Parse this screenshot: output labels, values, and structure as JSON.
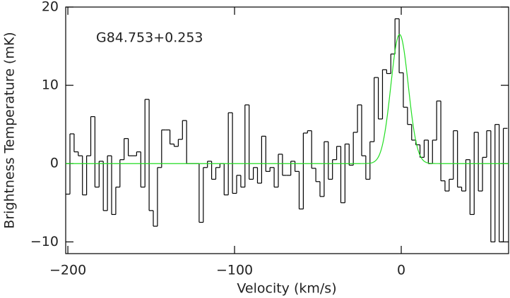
{
  "chart_data": {
    "type": "step",
    "annotation": "G84.753+0.253",
    "x_label": "Velocity (km/s)",
    "y_label": "Brightness Temperature (mK)",
    "color": "#000000",
    "x": [
      -200,
      -197.5,
      -195,
      -192.5,
      -190,
      -187.5,
      -185,
      -182.5,
      -180,
      -177.5,
      -175,
      -172.5,
      -170,
      -167.5,
      -165,
      -162.5,
      -160,
      -157.5,
      -155,
      -152.5,
      -150,
      -147.5,
      -145,
      -142.5,
      -140,
      -137.5,
      -135,
      -132.5,
      -130,
      -127.5,
      -125,
      -122.5,
      -120,
      -117.5,
      -115,
      -112.5,
      -110,
      -107.5,
      -105,
      -102.5,
      -100,
      -97.5,
      -95,
      -92.5,
      -90,
      -87.5,
      -85,
      -82.5,
      -80,
      -77.5,
      -75,
      -72.5,
      -70,
      -67.5,
      -65,
      -62.5,
      -60,
      -57.5,
      -55,
      -52.5,
      -50,
      -47.5,
      -45,
      -42.5,
      -40,
      -37.5,
      -35,
      -32.5,
      -30,
      -27.5,
      -25,
      -22.5,
      -20,
      -17.5,
      -15,
      -12.5,
      -10,
      -7.5,
      -5,
      -2.5,
      0,
      2.5,
      5,
      7.5,
      10,
      12.5,
      15,
      17.5,
      20,
      22.5,
      25,
      27.5,
      30,
      32.5,
      35,
      37.5,
      40,
      42.5,
      45,
      47.5,
      50,
      52.5,
      55,
      57.5,
      60,
      62.5
    ],
    "values": [
      -3.9,
      3.8,
      1.5,
      1,
      -4,
      1,
      6,
      -3,
      0.3,
      -6,
      1,
      -6.5,
      -3,
      0.5,
      3.2,
      1,
      1,
      1.5,
      -3,
      8.2,
      -6,
      -8,
      -0.5,
      4.3,
      4.3,
      2.5,
      2.2,
      3.1,
      5.5,
      0,
      0,
      0,
      -7.5,
      -0.5,
      0.3,
      -2,
      -0.5,
      0,
      -4,
      6.5,
      -3.8,
      -1.5,
      -3,
      7.5,
      -2,
      -0.5,
      -2.5,
      3.5,
      -1,
      -0.5,
      -3,
      1.2,
      -1.5,
      -1.5,
      0.3,
      -1,
      -5.8,
      3.9,
      4.2,
      -0.6,
      -2.3,
      -4.2,
      2.8,
      -2,
      0.5,
      2.2,
      -5,
      2.5,
      -0.2,
      4,
      7.5,
      1,
      -2,
      2.8,
      11,
      5.7,
      12,
      11.5,
      14,
      18.5,
      11.6,
      7.2,
      5,
      3,
      2.4,
      0.8,
      3,
      0,
      3,
      8,
      -2.2,
      -3.5,
      -2,
      4.2,
      -3,
      -3.5,
      0.5,
      -6.5,
      4,
      -3.5,
      0.8,
      4.2,
      -10,
      5,
      -10,
      4.5
    ],
    "fit": {
      "amplitude": 16.5,
      "center": -1,
      "fwhm": 12.3,
      "color": "#22dd22"
    },
    "xlim": [
      -201.3,
      64.4
    ],
    "ylim": [
      -11.5,
      20
    ],
    "xticks": [
      {
        "value": -200,
        "label": "−200"
      },
      {
        "value": -100,
        "label": "−100"
      },
      0
    ],
    "yticks": [
      {
        "value": -10,
        "label": "−10"
      },
      0,
      10,
      20
    ]
  }
}
